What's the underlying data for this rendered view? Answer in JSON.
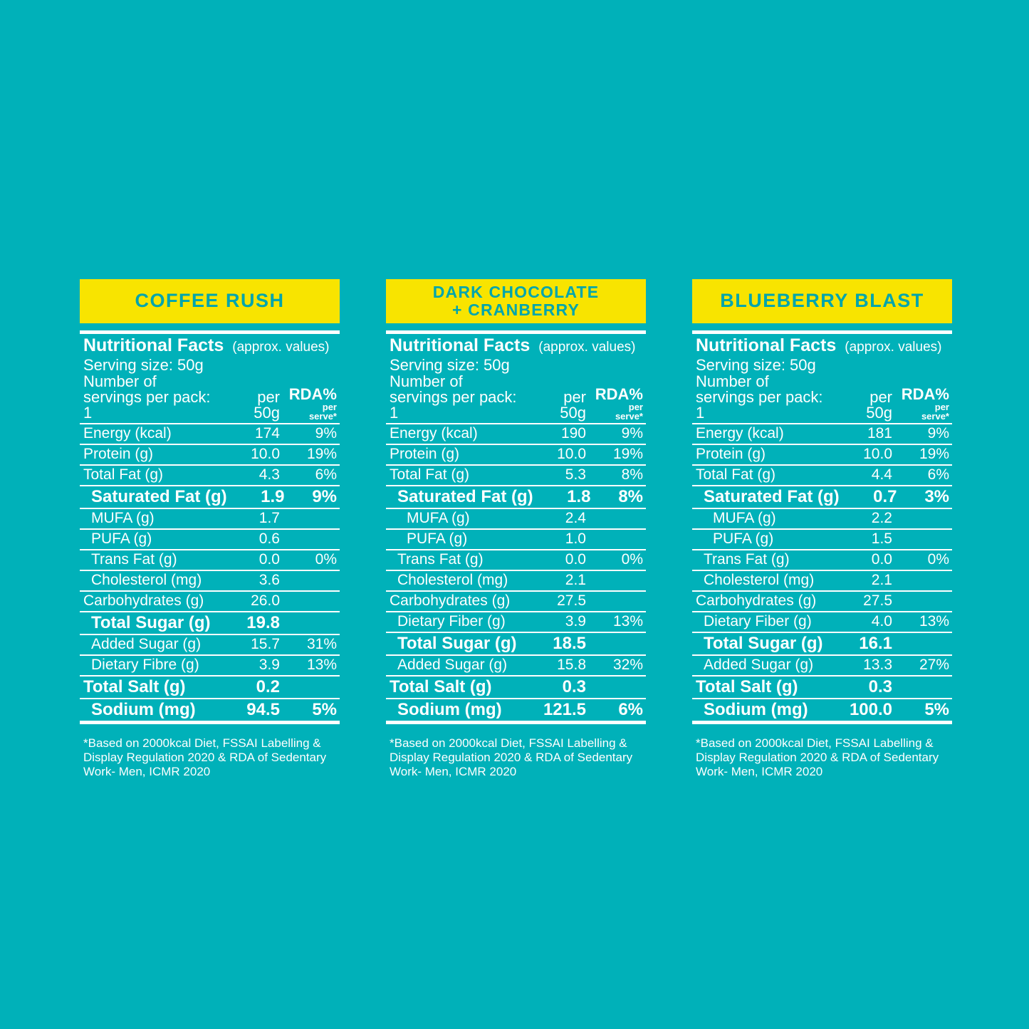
{
  "page": {
    "background_color": "#00b1b9",
    "banner_color": "#f8e400",
    "banner_text_color": "#00a5ad",
    "text_color": "#ffffff"
  },
  "tables": [
    {
      "title_lines": [
        "COFFEE RUSH"
      ],
      "header": {
        "nutritional_facts": "Nutritional Facts",
        "approx": "(approx. values)",
        "serving_size": "Serving size: 50g",
        "servings_line1": "Number of",
        "servings_line2": "servings per pack: 1",
        "per_line1": "per",
        "per_line2": "50g",
        "rda_line1": "RDA%",
        "rda_line2": "per",
        "rda_line3": "serve*"
      },
      "rows": [
        {
          "label": "Energy (kcal)",
          "value": "174",
          "rda": "9%",
          "bold": false,
          "indent": 0
        },
        {
          "label": "Protein (g)",
          "value": "10.0",
          "rda": "19%",
          "bold": false,
          "indent": 0
        },
        {
          "label": "Total Fat (g)",
          "value": "4.3",
          "rda": "6%",
          "bold": false,
          "indent": 0
        },
        {
          "label": "Saturated Fat (g)",
          "value": "1.9",
          "rda": "9%",
          "bold": true,
          "indent": 1
        },
        {
          "label": "MUFA (g)",
          "value": "1.7",
          "rda": "",
          "bold": false,
          "indent": 1
        },
        {
          "label": "PUFA (g)",
          "value": "0.6",
          "rda": "",
          "bold": false,
          "indent": 1
        },
        {
          "label": "Trans Fat (g)",
          "value": "0.0",
          "rda": "0%",
          "bold": false,
          "indent": 1
        },
        {
          "label": "Cholesterol (mg)",
          "value": "3.6",
          "rda": "",
          "bold": false,
          "indent": 1
        },
        {
          "label": "Carbohydrates (g)",
          "value": "26.0",
          "rda": "",
          "bold": false,
          "indent": 0
        },
        {
          "label": "Total Sugar (g)",
          "value": "19.8",
          "rda": "",
          "bold": true,
          "indent": 1
        },
        {
          "label": "Added Sugar (g)",
          "value": "15.7",
          "rda": "31%",
          "bold": false,
          "indent": 1
        },
        {
          "label": "Dietary Fibre (g)",
          "value": "3.9",
          "rda": "13%",
          "bold": false,
          "indent": 1
        },
        {
          "label": "Total Salt (g)",
          "value": "0.2",
          "rda": "",
          "bold": true,
          "indent": 0
        },
        {
          "label": "Sodium (mg)",
          "value": "94.5",
          "rda": "5%",
          "bold": true,
          "indent": 1
        }
      ],
      "footnote_lines": [
        "*Based on 2000kcal Diet, FSSAI Labelling &",
        "Display Regulation 2020 & RDA of Sedentary",
        "Work- Men, ICMR 2020"
      ]
    },
    {
      "title_lines": [
        "DARK CHOCOLATE",
        "+ CRANBERRY"
      ],
      "header": {
        "nutritional_facts": "Nutritional Facts",
        "approx": "(approx. values)",
        "serving_size": "Serving size: 50g",
        "servings_line1": "Number of",
        "servings_line2": "servings per pack: 1",
        "per_line1": "per",
        "per_line2": "50g",
        "rda_line1": "RDA%",
        "rda_line2": "per",
        "rda_line3": "serve*"
      },
      "rows": [
        {
          "label": "Energy (kcal)",
          "value": "190",
          "rda": "9%",
          "bold": false,
          "indent": 0
        },
        {
          "label": "Protein (g)",
          "value": "10.0",
          "rda": "19%",
          "bold": false,
          "indent": 0
        },
        {
          "label": "Total Fat (g)",
          "value": "5.3",
          "rda": "8%",
          "bold": false,
          "indent": 0
        },
        {
          "label": "Saturated Fat (g)",
          "value": "1.8",
          "rda": "8%",
          "bold": true,
          "indent": 1
        },
        {
          "label": "MUFA (g)",
          "value": "2.4",
          "rda": "",
          "bold": false,
          "indent": 2
        },
        {
          "label": "PUFA (g)",
          "value": "1.0",
          "rda": "",
          "bold": false,
          "indent": 2
        },
        {
          "label": "Trans Fat (g)",
          "value": "0.0",
          "rda": "0%",
          "bold": false,
          "indent": 1
        },
        {
          "label": "Cholesterol (mg)",
          "value": "2.1",
          "rda": "",
          "bold": false,
          "indent": 1
        },
        {
          "label": "Carbohydrates (g)",
          "value": "27.5",
          "rda": "",
          "bold": false,
          "indent": 0
        },
        {
          "label": "Dietary Fiber (g)",
          "value": "3.9",
          "rda": "13%",
          "bold": false,
          "indent": 1
        },
        {
          "label": "Total Sugar (g)",
          "value": "18.5",
          "rda": "",
          "bold": true,
          "indent": 1
        },
        {
          "label": "Added Sugar (g)",
          "value": "15.8",
          "rda": "32%",
          "bold": false,
          "indent": 1
        },
        {
          "label": "Total Salt (g)",
          "value": "0.3",
          "rda": "",
          "bold": true,
          "indent": 0
        },
        {
          "label": "Sodium (mg)",
          "value": "121.5",
          "rda": "6%",
          "bold": true,
          "indent": 1
        }
      ],
      "footnote_lines": [
        "*Based on 2000kcal Diet, FSSAI Labelling &",
        "Display Regulation 2020 & RDA of Sedentary",
        "Work- Men, ICMR 2020"
      ]
    },
    {
      "title_lines": [
        "BLUEBERRY BLAST"
      ],
      "header": {
        "nutritional_facts": "Nutritional Facts",
        "approx": "(approx. values)",
        "serving_size": "Serving size: 50g",
        "servings_line1": "Number of",
        "servings_line2": "servings per pack: 1",
        "per_line1": "per",
        "per_line2": "50g",
        "rda_line1": "RDA%",
        "rda_line2": "per",
        "rda_line3": "serve*"
      },
      "rows": [
        {
          "label": "Energy (kcal)",
          "value": "181",
          "rda": "9%",
          "bold": false,
          "indent": 0
        },
        {
          "label": "Protein (g)",
          "value": "10.0",
          "rda": "19%",
          "bold": false,
          "indent": 0
        },
        {
          "label": "Total Fat (g)",
          "value": "4.4",
          "rda": "6%",
          "bold": false,
          "indent": 0
        },
        {
          "label": "Saturated Fat (g)",
          "value": "0.7",
          "rda": "3%",
          "bold": true,
          "indent": 1
        },
        {
          "label": "MUFA (g)",
          "value": "2.2",
          "rda": "",
          "bold": false,
          "indent": 2
        },
        {
          "label": "PUFA (g)",
          "value": "1.5",
          "rda": "",
          "bold": false,
          "indent": 2
        },
        {
          "label": "Trans Fat (g)",
          "value": "0.0",
          "rda": "0%",
          "bold": false,
          "indent": 1
        },
        {
          "label": "Cholesterol (mg)",
          "value": "2.1",
          "rda": "",
          "bold": false,
          "indent": 1
        },
        {
          "label": "Carbohydrates (g)",
          "value": "27.5",
          "rda": "",
          "bold": false,
          "indent": 0
        },
        {
          "label": "Dietary Fiber (g)",
          "value": "4.0",
          "rda": "13%",
          "bold": false,
          "indent": 1
        },
        {
          "label": "Total Sugar (g)",
          "value": "16.1",
          "rda": "",
          "bold": true,
          "indent": 1
        },
        {
          "label": "Added Sugar (g)",
          "value": "13.3",
          "rda": "27%",
          "bold": false,
          "indent": 1
        },
        {
          "label": "Total Salt (g)",
          "value": "0.3",
          "rda": "",
          "bold": true,
          "indent": 0
        },
        {
          "label": "Sodium (mg)",
          "value": "100.0",
          "rda": "5%",
          "bold": true,
          "indent": 1
        }
      ],
      "footnote_lines": [
        "*Based on 2000kcal Diet, FSSAI Labelling &",
        "Display Regulation 2020 & RDA of Sedentary",
        "Work- Men, ICMR 2020"
      ]
    }
  ]
}
